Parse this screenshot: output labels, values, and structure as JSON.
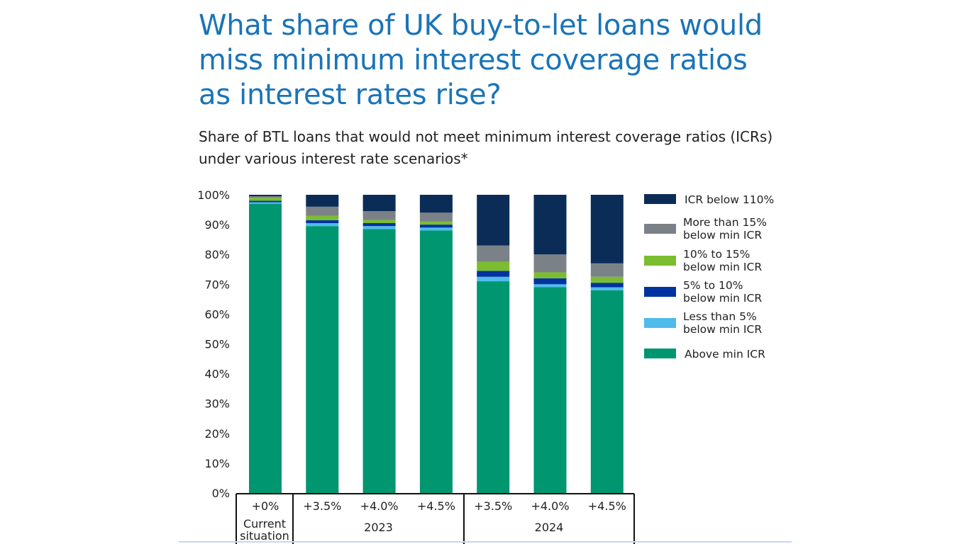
{
  "header": {
    "title": "What share of UK buy-to-let loans would miss minimum interest coverage ratios as interest rates rise?",
    "subtitle": "Share of BTL loans that would not meet minimum interest coverage ratios (ICRs) under various interest rate scenarios*"
  },
  "chart_data": {
    "type": "bar",
    "stacked": true,
    "title": "What share of UK buy-to-let loans would miss minimum interest coverage ratios as interest rates rise?",
    "subtitle": "Share of BTL loans that would not meet minimum interest coverage ratios (ICRs) under various interest rate scenarios*",
    "categories": [
      "+0%",
      "+3.5%",
      "+4.0%",
      "+4.5%",
      "+3.5%",
      "+4.0%",
      "+4.5%"
    ],
    "category_groups": [
      {
        "label": "Current situation",
        "categories": [
          0
        ]
      },
      {
        "label": "2023",
        "categories": [
          1,
          2,
          3
        ]
      },
      {
        "label": "2024",
        "categories": [
          4,
          5,
          6
        ]
      }
    ],
    "series": [
      {
        "name": "Above min ICR",
        "color": "#009670",
        "values": [
          97.0,
          89.5,
          88.5,
          88.0,
          71.0,
          69.0,
          68.0
        ]
      },
      {
        "name": "Less than 5% below min ICR",
        "color": "#4fbbeb",
        "values": [
          0.5,
          1.0,
          1.0,
          1.0,
          1.5,
          1.0,
          1.0
        ]
      },
      {
        "name": "5% to 10% below min ICR",
        "color": "#0033a0",
        "values": [
          0.5,
          1.0,
          1.0,
          1.0,
          2.0,
          2.0,
          1.5
        ]
      },
      {
        "name": "10% to 15% below min ICR",
        "color": "#7bbd2e",
        "values": [
          1.0,
          1.5,
          1.0,
          1.0,
          3.0,
          2.0,
          2.0
        ]
      },
      {
        "name": "More than 15% below min ICR",
        "color": "#7b8287",
        "values": [
          0.5,
          3.0,
          3.0,
          3.0,
          5.5,
          6.0,
          4.5
        ]
      },
      {
        "name": "ICR below 110%",
        "color": "#0b2c56",
        "values": [
          0.5,
          4.0,
          5.5,
          6.0,
          17.0,
          20.0,
          23.0
        ]
      }
    ],
    "y_ticks": [
      "0%",
      "10%",
      "20%",
      "30%",
      "40%",
      "50%",
      "60%",
      "70%",
      "80%",
      "90%",
      "100%"
    ],
    "ylim": [
      0,
      100
    ],
    "legend": {
      "position": "right",
      "items": [
        {
          "lines": [
            "ICR below 110%"
          ],
          "color": "#0b2c56"
        },
        {
          "lines": [
            "More than 15%",
            "below min ICR"
          ],
          "color": "#7b8287"
        },
        {
          "lines": [
            "10% to 15%",
            "below min ICR"
          ],
          "color": "#7bbd2e"
        },
        {
          "lines": [
            "5% to 10%",
            "below min ICR"
          ],
          "color": "#0033a0"
        },
        {
          "lines": [
            "Less than 5%",
            "below min ICR"
          ],
          "color": "#4fbbeb"
        },
        {
          "lines": [
            "Above min ICR"
          ],
          "color": "#009670"
        }
      ]
    },
    "group_labels": [
      {
        "lines": [
          "Current",
          "situation"
        ]
      },
      {
        "lines": [
          "2023"
        ]
      },
      {
        "lines": [
          "2024"
        ]
      }
    ]
  }
}
